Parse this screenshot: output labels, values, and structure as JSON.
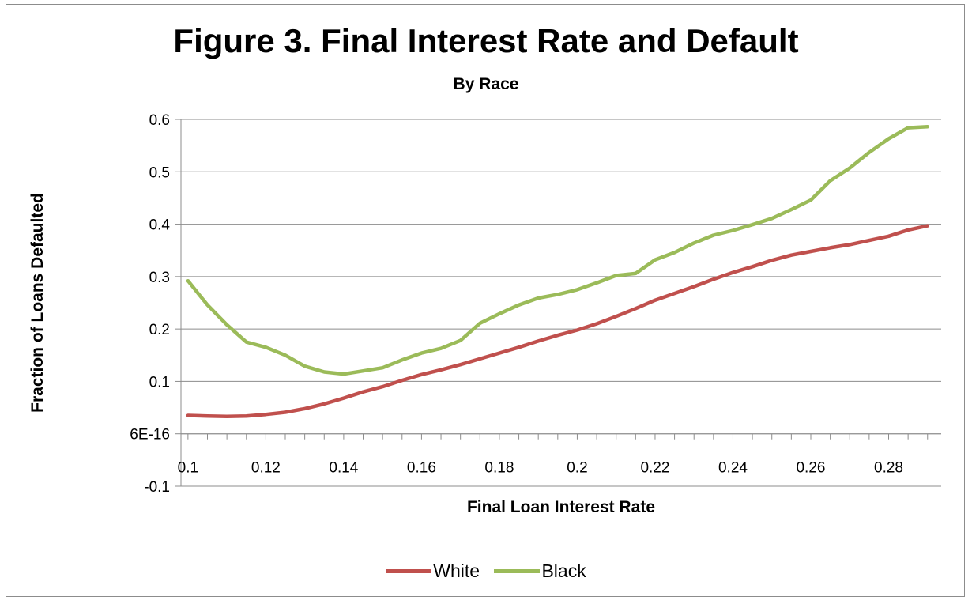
{
  "chart_data": {
    "type": "line",
    "title": "Figure 3.  Final Interest Rate and Default",
    "subtitle": "By Race",
    "xlabel": "Final Loan Interest Rate",
    "ylabel": "Fraction of Loans Defaulted",
    "ylim": [
      -0.1,
      0.6
    ],
    "xlim": [
      0.1,
      0.29
    ],
    "y_ticks": [
      "-0.1",
      "6E-16",
      "0.1",
      "0.2",
      "0.3",
      "0.4",
      "0.5",
      "0.6"
    ],
    "x_ticks": [
      "0.1",
      "0.12",
      "0.14",
      "0.16",
      "0.18",
      "0.2",
      "0.22",
      "0.24",
      "0.26",
      "0.28"
    ],
    "grid": true,
    "legend_position": "bottom",
    "x": [
      0.1,
      0.105,
      0.11,
      0.115,
      0.12,
      0.125,
      0.13,
      0.135,
      0.14,
      0.145,
      0.15,
      0.155,
      0.16,
      0.165,
      0.17,
      0.175,
      0.18,
      0.185,
      0.19,
      0.195,
      0.2,
      0.205,
      0.21,
      0.215,
      0.22,
      0.225,
      0.23,
      0.235,
      0.24,
      0.245,
      0.25,
      0.255,
      0.26,
      0.265,
      0.27,
      0.275,
      0.28,
      0.285,
      0.29
    ],
    "series": [
      {
        "name": "White",
        "color": "#c0504d",
        "values": [
          0.035,
          0.034,
          0.033,
          0.034,
          0.037,
          0.041,
          0.048,
          0.057,
          0.068,
          0.08,
          0.09,
          0.102,
          0.113,
          0.122,
          0.132,
          0.143,
          0.154,
          0.165,
          0.177,
          0.188,
          0.198,
          0.21,
          0.224,
          0.239,
          0.255,
          0.268,
          0.281,
          0.295,
          0.308,
          0.319,
          0.331,
          0.341,
          0.348,
          0.355,
          0.361,
          0.369,
          0.377,
          0.389,
          0.397
        ]
      },
      {
        "name": "Black",
        "color": "#9bbb59",
        "values": [
          0.292,
          0.246,
          0.208,
          0.175,
          0.165,
          0.15,
          0.129,
          0.118,
          0.114,
          0.12,
          0.126,
          0.141,
          0.154,
          0.163,
          0.178,
          0.211,
          0.229,
          0.246,
          0.259,
          0.266,
          0.275,
          0.288,
          0.302,
          0.306,
          0.332,
          0.346,
          0.364,
          0.379,
          0.388,
          0.399,
          0.411,
          0.428,
          0.446,
          0.483,
          0.507,
          0.537,
          0.563,
          0.584,
          0.586
        ]
      }
    ]
  }
}
